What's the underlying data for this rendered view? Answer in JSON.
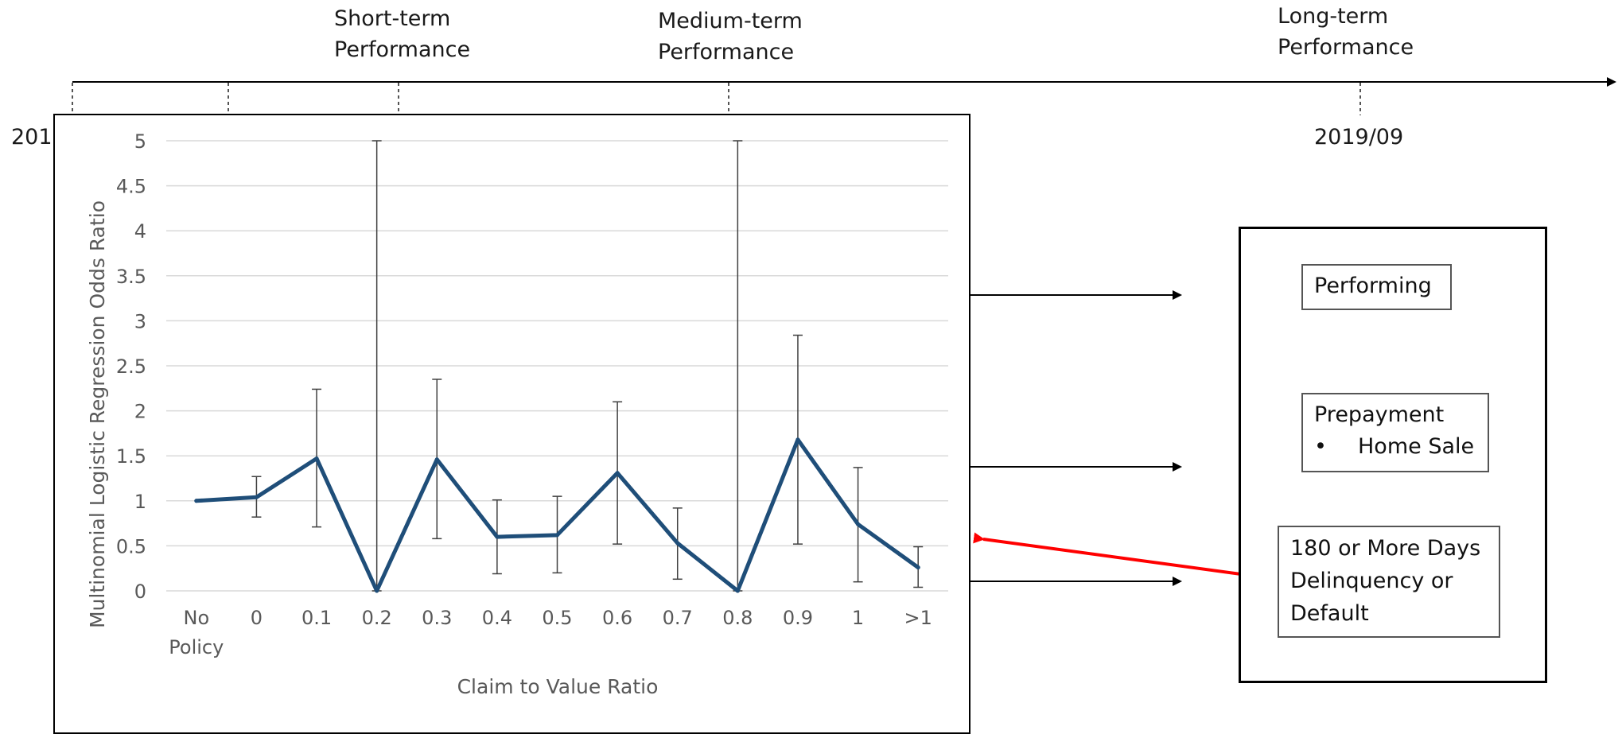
{
  "timeline": {
    "phases": [
      {
        "label_line1": "Short-term",
        "label_line2": "Performance"
      },
      {
        "label_line1": "Medium-term",
        "label_line2": "Performance"
      },
      {
        "label_line1": "Long-term",
        "label_line2": "Performance"
      }
    ],
    "start_date_fragment": "201",
    "end_date": "2019/09"
  },
  "outcomes": [
    {
      "title": "Performing",
      "bullet": "",
      "lines": []
    },
    {
      "title": "Prepayment",
      "bullet": "Home Sale",
      "lines": []
    },
    {
      "title": "",
      "bullet": "",
      "lines": [
        "180 or More Days",
        "Delinquency or",
        "Default"
      ]
    }
  ],
  "colors": {
    "series_line": "#1f4e79",
    "highlight_arrow": "#ff0000",
    "gridline": "#d9d9d9",
    "axis_text": "#595959"
  },
  "chart_data": {
    "type": "line",
    "title": "",
    "xlabel": "Claim to Value Ratio",
    "ylabel": "Multinomial Logistic Regression Odds Ratio",
    "categories": [
      "No Policy",
      "0",
      "0.1",
      "0.2",
      "0.3",
      "0.4",
      "0.5",
      "0.6",
      "0.7",
      "0.8",
      "0.9",
      "1",
      ">1"
    ],
    "category_lines": [
      [
        "No",
        "Policy"
      ],
      [
        "0"
      ],
      [
        "0.1"
      ],
      [
        "0.2"
      ],
      [
        "0.3"
      ],
      [
        "0.4"
      ],
      [
        "0.5"
      ],
      [
        "0.6"
      ],
      [
        "0.7"
      ],
      [
        "0.8"
      ],
      [
        "0.9"
      ],
      [
        "1"
      ],
      [
        ">1"
      ]
    ],
    "series": [
      {
        "values": [
          1.0,
          1.04,
          1.47,
          0.0,
          1.46,
          0.6,
          0.62,
          1.31,
          0.53,
          0.0,
          1.68,
          0.74,
          0.26
        ],
        "error_low": [
          1.0,
          0.82,
          0.71,
          0.0,
          0.58,
          0.19,
          0.2,
          0.52,
          0.13,
          0.0,
          0.52,
          0.1,
          0.04
        ],
        "error_high": [
          1.0,
          1.27,
          2.24,
          5.0,
          2.35,
          1.01,
          1.05,
          2.1,
          0.92,
          5.0,
          2.84,
          1.37,
          0.49
        ]
      }
    ],
    "ylim": [
      0,
      5
    ],
    "yticks": [
      "0",
      "0.5",
      "1",
      "1.5",
      "2",
      "2.5",
      "3",
      "3.5",
      "4",
      "4.5",
      "5"
    ],
    "grid": true,
    "legend": "none"
  }
}
